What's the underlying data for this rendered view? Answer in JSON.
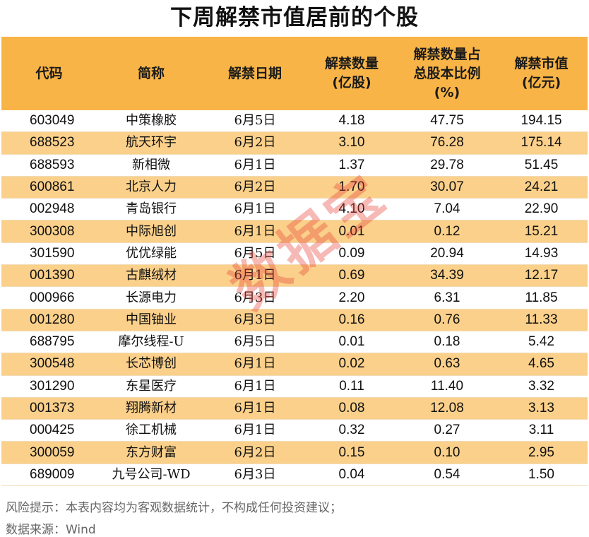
{
  "title": "下周解禁市值居前的个股",
  "headers": [
    "代码",
    "简称",
    "解禁日期",
    "解禁数量\n(亿股)",
    "解禁数量占\n总股本比例\n(%)",
    "解禁市值\n(亿元)"
  ],
  "rows": [
    [
      "603049",
      "中策橡胶",
      "6月5日",
      "4.18",
      "47.75",
      "194.15"
    ],
    [
      "688523",
      "航天环宇",
      "6月2日",
      "3.10",
      "76.28",
      "175.14"
    ],
    [
      "688593",
      "新相微",
      "6月1日",
      "1.37",
      "29.78",
      "51.45"
    ],
    [
      "600861",
      "北京人力",
      "6月2日",
      "1.70",
      "30.07",
      "24.21"
    ],
    [
      "002948",
      "青岛银行",
      "6月1日",
      "4.10",
      "7.04",
      "22.90"
    ],
    [
      "300308",
      "中际旭创",
      "6月1日",
      "0.01",
      "0.12",
      "15.21"
    ],
    [
      "301590",
      "优优绿能",
      "6月5日",
      "0.09",
      "20.94",
      "14.93"
    ],
    [
      "001390",
      "古麒绒材",
      "6月1日",
      "0.69",
      "34.39",
      "12.17"
    ],
    [
      "000966",
      "长源电力",
      "6月3日",
      "2.20",
      "6.31",
      "11.85"
    ],
    [
      "001280",
      "中国铀业",
      "6月3日",
      "0.16",
      "0.76",
      "11.33"
    ],
    [
      "688795",
      "摩尔线程-U",
      "6月5日",
      "0.01",
      "0.18",
      "5.42"
    ],
    [
      "300548",
      "长芯博创",
      "6月1日",
      "0.02",
      "0.63",
      "4.65"
    ],
    [
      "301290",
      "东星医疗",
      "6月1日",
      "0.11",
      "11.40",
      "3.32"
    ],
    [
      "001373",
      "翔腾新材",
      "6月1日",
      "0.08",
      "12.08",
      "3.13"
    ],
    [
      "000425",
      "徐工机械",
      "6月1日",
      "0.32",
      "0.27",
      "3.11"
    ],
    [
      "300059",
      "东方财富",
      "6月2日",
      "0.15",
      "0.10",
      "2.95"
    ],
    [
      "689009",
      "九号公司-WD",
      "6月3日",
      "0.04",
      "0.54",
      "1.50"
    ]
  ],
  "footer": {
    "risk": "风险提示：本表内容均为客观数据统计，不构成任何投资建议；",
    "source": "数据来源：Wind"
  },
  "watermark": "数据宝"
}
